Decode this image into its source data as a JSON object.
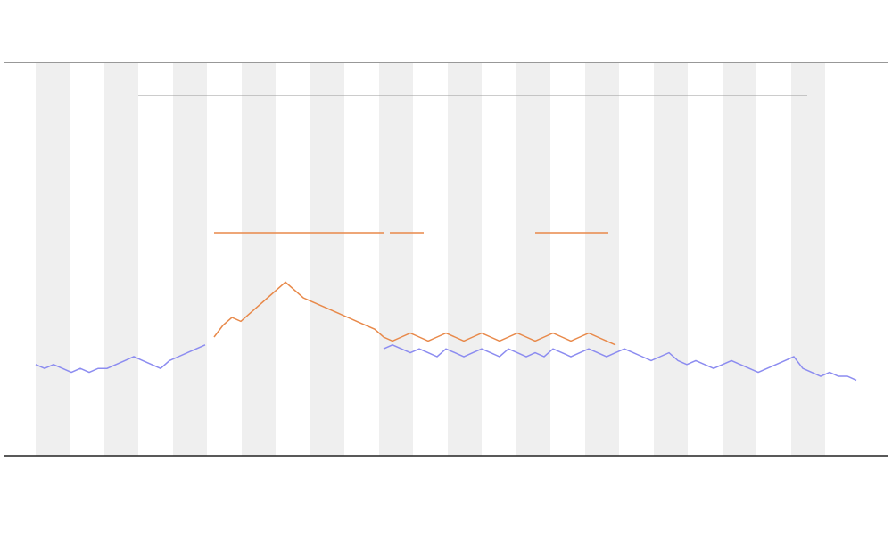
{
  "chart_data": {
    "type": "line",
    "x": [
      0,
      1,
      2,
      3,
      4,
      5,
      6,
      7,
      8,
      9,
      10,
      11,
      12,
      13,
      14,
      15,
      16,
      17,
      18,
      19,
      20,
      21,
      22,
      23,
      24,
      25,
      26,
      27,
      28,
      29,
      30,
      31,
      32,
      33,
      34,
      35,
      36,
      37,
      38,
      39,
      40,
      41,
      42,
      43,
      44,
      45,
      46,
      47,
      48,
      49,
      50,
      51,
      52,
      53,
      54,
      55,
      56,
      57,
      58,
      59,
      60,
      61,
      62,
      63,
      64,
      65,
      66,
      67,
      68,
      69,
      70,
      71,
      72,
      73,
      74,
      75,
      76,
      77,
      78,
      79,
      80,
      81,
      82,
      83,
      84,
      85,
      86,
      87,
      88,
      89,
      90,
      91,
      92
    ],
    "xlim": [
      0,
      92
    ],
    "ylim": [
      0,
      100
    ],
    "series": [
      {
        "color": "#8c8cf0",
        "values": [
          23,
          22,
          23,
          22,
          21,
          22,
          21,
          22,
          22,
          23,
          24,
          25,
          24,
          23,
          22,
          24,
          25,
          26,
          27,
          28,
          null,
          null,
          null,
          null,
          null,
          null,
          null,
          null,
          null,
          null,
          null,
          null,
          null,
          null,
          null,
          null,
          null,
          null,
          null,
          27,
          28,
          27,
          26,
          27,
          26,
          25,
          27,
          26,
          25,
          26,
          27,
          26,
          25,
          27,
          26,
          25,
          26,
          25,
          27,
          26,
          25,
          26,
          27,
          26,
          25,
          26,
          27,
          26,
          25,
          24,
          25,
          26,
          24,
          23,
          24,
          23,
          22,
          23,
          24,
          23,
          22,
          21,
          22,
          23,
          24,
          25,
          22,
          21,
          20,
          21,
          20,
          20,
          19
        ]
      },
      {
        "color": "#e8894a",
        "values": [
          null,
          null,
          null,
          null,
          null,
          null,
          null,
          null,
          null,
          null,
          null,
          null,
          null,
          null,
          null,
          null,
          null,
          null,
          null,
          null,
          30,
          33,
          35,
          34,
          36,
          38,
          40,
          42,
          44,
          42,
          40,
          39,
          38,
          37,
          36,
          35,
          34,
          33,
          32,
          30,
          29,
          30,
          31,
          30,
          29,
          30,
          31,
          30,
          29,
          30,
          31,
          30,
          29,
          30,
          31,
          30,
          29,
          30,
          31,
          30,
          29,
          30,
          31,
          30,
          29,
          28,
          null,
          null,
          null,
          null,
          null,
          null,
          null,
          null,
          null,
          null,
          null,
          null,
          null,
          null,
          null,
          null,
          null,
          null,
          null,
          null,
          null,
          null,
          null,
          null,
          null,
          null,
          null
        ]
      }
    ]
  }
}
